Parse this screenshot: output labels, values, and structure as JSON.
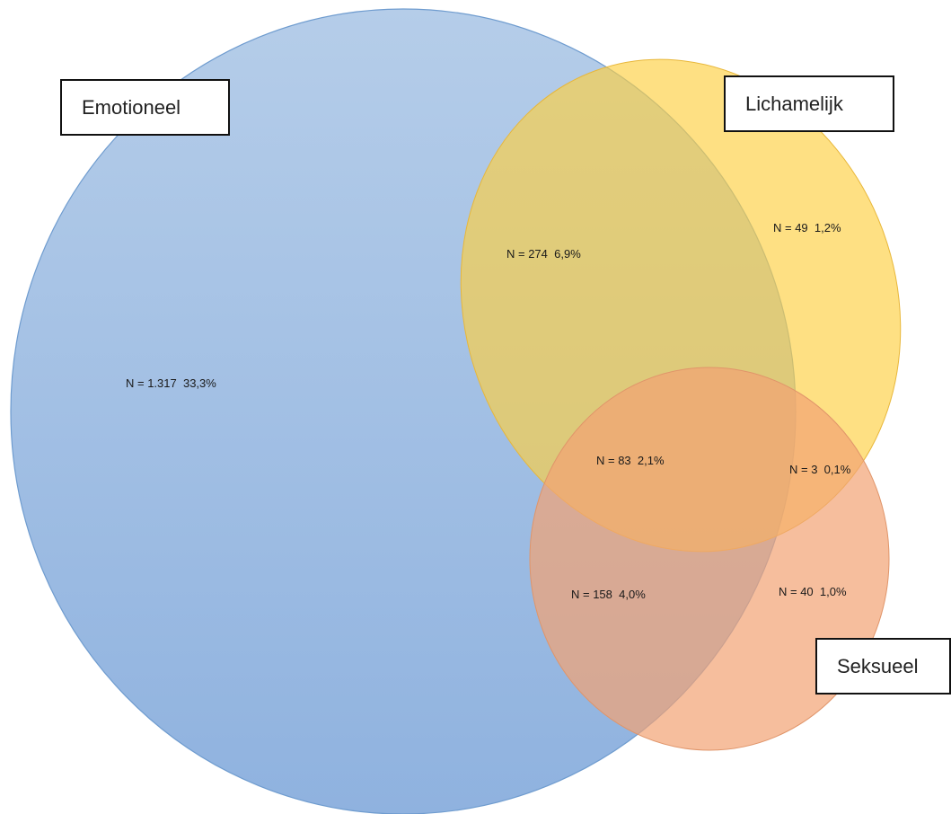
{
  "sets": [
    {
      "key": "emotioneel",
      "label": "Emotioneel",
      "color": "#9dbde3"
    },
    {
      "key": "lichamelijk",
      "label": "Lichamelijk",
      "color": "#fdd66e"
    },
    {
      "key": "seksueel",
      "label": "Seksueel",
      "color": "#f4b48a"
    }
  ],
  "regions": {
    "emotioneel_only": {
      "n": "1.317",
      "pct": "33,3%",
      "text": "N = 1.317  33,3%"
    },
    "lichamelijk_only": {
      "n": "49",
      "pct": "1,2%",
      "text": "N = 49  1,2%"
    },
    "seksueel_only": {
      "n": "40",
      "pct": "1,0%",
      "text": "N = 40  1,0%"
    },
    "emotioneel_lichamelijk": {
      "n": "274",
      "pct": "6,9%",
      "text": "N = 274  6,9%"
    },
    "emotioneel_seksueel": {
      "n": "158",
      "pct": "4,0%",
      "text": "N = 158  4,0%"
    },
    "lichamelijk_seksueel": {
      "n": "3",
      "pct": "0,1%",
      "text": "N = 3  0,1%"
    },
    "all_three": {
      "n": "83",
      "pct": "2,1%",
      "text": "N = 83  2,1%"
    }
  }
}
